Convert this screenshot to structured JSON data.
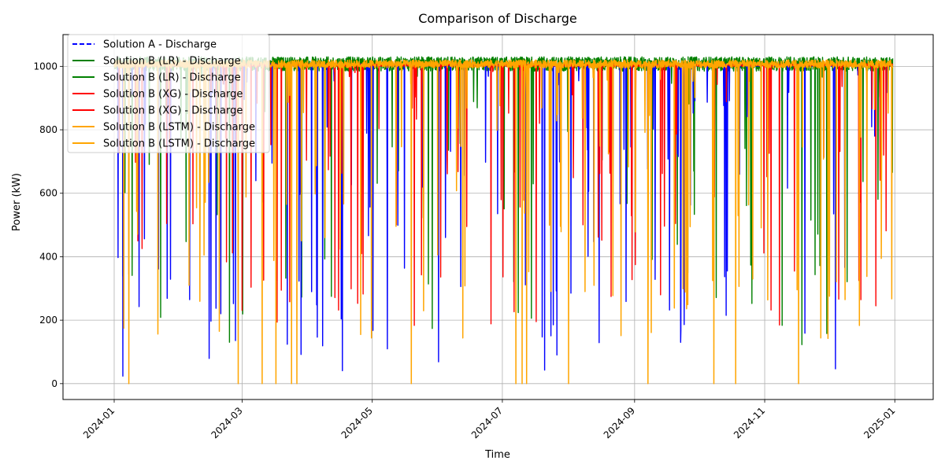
{
  "chart_data": {
    "type": "line",
    "title": "Comparison of Discharge",
    "xlabel": "Time",
    "ylabel": "Power (kW)",
    "x_range": [
      "2023-12-08",
      "2025-01-19"
    ],
    "ylim": [
      -50,
      1100
    ],
    "x_ticks": [
      "2024-01",
      "2024-03",
      "2024-05",
      "2024-07",
      "2024-09",
      "2024-11",
      "2025-01"
    ],
    "x_tick_dates": [
      "2024-01-01",
      "2024-03-01",
      "2024-05-01",
      "2024-07-01",
      "2024-09-01",
      "2024-11-01",
      "2025-01-01"
    ],
    "y_ticks": [
      0,
      200,
      400,
      600,
      800,
      1000
    ],
    "grid": true,
    "legend_position": "top-left",
    "series": [
      {
        "name": "Solution A - Discharge",
        "color": "#0000ff",
        "style": "dashed",
        "values": [
          1003,
          120,
          1003,
          26,
          1003,
          630,
          1002
        ]
      },
      {
        "name": "Solution B (LR) - Discharge",
        "color": "#008000",
        "style": "solid",
        "values": [
          488,
          1040,
          170,
          1045,
          125,
          1040,
          322
        ]
      },
      {
        "name": "Solution B (LR) - Discharge",
        "color": "#008000",
        "style": "solid",
        "values": [
          1008,
          1040,
          1035,
          1045,
          1042,
          1040,
          1010
        ]
      },
      {
        "name": "Solution B (XG) - Discharge",
        "color": "#ff0000",
        "style": "solid",
        "values": [
          1002,
          190,
          1003,
          170,
          1002,
          210,
          1001
        ]
      },
      {
        "name": "Solution B (XG) - Discharge",
        "color": "#ff0000",
        "style": "solid",
        "values": [
          1005,
          950,
          1004,
          960,
          1003,
          955,
          1000
        ]
      },
      {
        "name": "Solution B (LSTM) - Discharge",
        "color": "#ffa500",
        "style": "solid",
        "values": [
          1000,
          0,
          1000,
          0,
          1000,
          0,
          1000
        ]
      },
      {
        "name": "Solution B (LSTM) - Discharge",
        "color": "#ffa500",
        "style": "solid",
        "values": [
          1030,
          1030,
          1035,
          1030,
          1035,
          1030,
          1000
        ]
      }
    ]
  }
}
